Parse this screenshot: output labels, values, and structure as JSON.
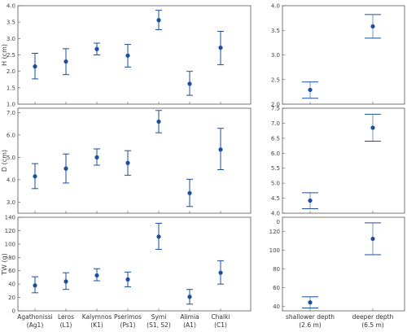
{
  "chart_data": [
    {
      "type": "scatter",
      "panel": "H-island",
      "ylabel": "H (cm)",
      "ylim": [
        1.0,
        4.0
      ],
      "yticks": [
        "1.0",
        "1.5",
        "2.0",
        "2.5",
        "3.0",
        "3.5",
        "4.0"
      ],
      "categories": [],
      "series": [
        {
          "values": [
            2.15,
            2.3,
            2.68,
            2.48,
            3.56,
            1.62,
            2.72
          ],
          "err_low": [
            1.77,
            1.9,
            2.5,
            2.13,
            3.27,
            1.27,
            2.2
          ],
          "err_high": [
            2.55,
            2.69,
            2.86,
            2.82,
            3.86,
            2.0,
            3.22
          ]
        }
      ]
    },
    {
      "type": "scatter",
      "panel": "H-depth",
      "ylabel": "",
      "ylim": [
        2.0,
        4.0
      ],
      "yticks": [
        "2.0",
        "2.5",
        "3.0",
        "3.5",
        "4.0"
      ],
      "categories": [],
      "series": [
        {
          "values": [
            2.29,
            3.58
          ],
          "err_low": [
            2.12,
            3.34
          ],
          "err_high": [
            2.45,
            3.82
          ]
        }
      ]
    },
    {
      "type": "scatter",
      "panel": "D-island",
      "ylabel": "D (cm)",
      "ylim": [
        2.5,
        7.2
      ],
      "yticks": [
        "3.0",
        "4.0",
        "5.0",
        "6.0",
        "7.0"
      ],
      "categories": [],
      "series": [
        {
          "values": [
            4.15,
            4.5,
            5.0,
            4.75,
            6.6,
            3.4,
            5.35
          ],
          "err_low": [
            3.6,
            3.85,
            4.65,
            4.2,
            6.1,
            2.8,
            4.45
          ],
          "err_high": [
            4.72,
            5.15,
            5.38,
            5.3,
            7.1,
            4.02,
            6.3
          ]
        }
      ]
    },
    {
      "type": "scatter",
      "panel": "D-depth",
      "ylabel": "",
      "ylim": [
        4.0,
        7.5
      ],
      "yticks": [
        "4.0",
        "4.5",
        "5.0",
        "5.5",
        "6.0",
        "6.5",
        "7.0",
        "7.5"
      ],
      "categories": [],
      "series": [
        {
          "values": [
            4.42,
            6.85
          ],
          "err_low": [
            4.15,
            6.4
          ],
          "err_high": [
            4.68,
            7.3
          ]
        }
      ]
    },
    {
      "type": "scatter",
      "panel": "TW-island",
      "ylabel": "TW (g)",
      "ylim": [
        0,
        140
      ],
      "yticks": [
        "0",
        "20",
        "40",
        "60",
        "80",
        "100",
        "120",
        "140"
      ],
      "categories": [
        "Agathonissi\n(Ag1)",
        "Leros\n(L1)",
        "Kalymnos\n(K1)",
        "Pserimos\n(Ps1)",
        "Symi\n(S1, S2)",
        "Alimia\n(A1)",
        "Chalki\n(C1)"
      ],
      "series": [
        {
          "values": [
            38,
            44,
            53,
            47,
            111,
            21,
            57
          ],
          "err_low": [
            27,
            32,
            45,
            36,
            92,
            10,
            40
          ],
          "err_high": [
            51,
            57,
            63,
            58,
            131,
            32,
            75
          ]
        }
      ]
    },
    {
      "type": "scatter",
      "panel": "TW-depth",
      "ylabel": "",
      "ylim": [
        35,
        135
      ],
      "yticks": [
        "40",
        "60",
        "80",
        "100",
        "120"
      ],
      "top_tick": "0",
      "categories": [
        "shallower depth\n(2.6 m)",
        "deeper depth\n(6.5 m)"
      ],
      "series": [
        {
          "values": [
            44,
            112
          ],
          "err_low": [
            38,
            95
          ],
          "err_high": [
            50,
            129
          ]
        }
      ]
    }
  ],
  "style": {
    "marker_color": "#1a4f9c",
    "bar_color": "#1a4f9c",
    "frame_color": "#555555"
  }
}
